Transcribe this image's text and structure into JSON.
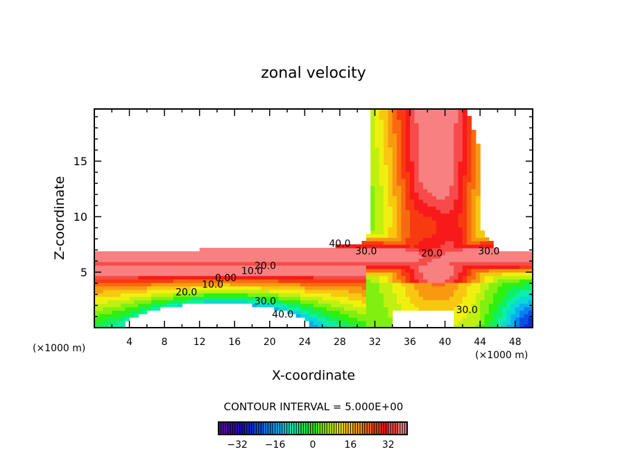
{
  "chart_data": {
    "type": "heatmap",
    "subtype": "filled-contour",
    "title": "zonal velocity",
    "xlabel": "X-coordinate",
    "ylabel": "Z-coordinate",
    "x_units": "(×1000 m)",
    "y_units": "(×1000 m)",
    "xlim": [
      0,
      50
    ],
    "ylim": [
      0,
      19.7
    ],
    "x_ticks": [
      4,
      8,
      12,
      16,
      20,
      24,
      28,
      32,
      36,
      40,
      44,
      48
    ],
    "x_tick_labels": [
      "4",
      "8",
      "12",
      "16",
      "20",
      "24",
      "28",
      "32",
      "36",
      "40",
      "44",
      "48"
    ],
    "y_ticks": [
      5,
      10,
      15
    ],
    "y_tick_labels": [
      "5",
      "10",
      "15"
    ],
    "contour_interval_text": "CONTOUR INTERVAL = 5.000E+00",
    "contour_interval": 5.0,
    "contour_labels": [
      {
        "text": "40.0",
        "x": 28.0,
        "z": 7.3
      },
      {
        "text": "30.0",
        "x": 31.0,
        "z": 6.6
      },
      {
        "text": "20.0",
        "x": 38.5,
        "z": 6.4
      },
      {
        "text": "30.0",
        "x": 45.0,
        "z": 6.6
      },
      {
        "text": "20.0",
        "x": 19.5,
        "z": 5.3
      },
      {
        "text": "10.0",
        "x": 18.0,
        "z": 4.8
      },
      {
        "text": "0.00",
        "x": 15.0,
        "z": 4.2
      },
      {
        "text": "10.0",
        "x": 13.5,
        "z": 3.6
      },
      {
        "text": "20.0",
        "x": 10.5,
        "z": 2.9
      },
      {
        "text": "30.0",
        "x": 19.5,
        "z": 2.1
      },
      {
        "text": "40.0",
        "x": 21.5,
        "z": 0.9
      },
      {
        "text": "30.0",
        "x": 42.5,
        "z": 1.3
      }
    ],
    "colorbar": {
      "range": [
        -40,
        40
      ],
      "tick_values": [
        -32,
        -16,
        0,
        16,
        32
      ],
      "tick_labels": [
        "−32",
        "−16",
        "0",
        "16",
        "32"
      ],
      "colors": [
        "#5a0a9a",
        "#3a0aa8",
        "#1a10b8",
        "#0a2ad0",
        "#0a50e8",
        "#0a80f0",
        "#0ab0f0",
        "#0ad8d8",
        "#0af0a8",
        "#10f060",
        "#30f010",
        "#80f010",
        "#c0f010",
        "#f0f010",
        "#f8c810",
        "#f89a10",
        "#f86a10",
        "#f83a10",
        "#f81a1a",
        "#f84a4a",
        "#f88080"
      ]
    }
  }
}
